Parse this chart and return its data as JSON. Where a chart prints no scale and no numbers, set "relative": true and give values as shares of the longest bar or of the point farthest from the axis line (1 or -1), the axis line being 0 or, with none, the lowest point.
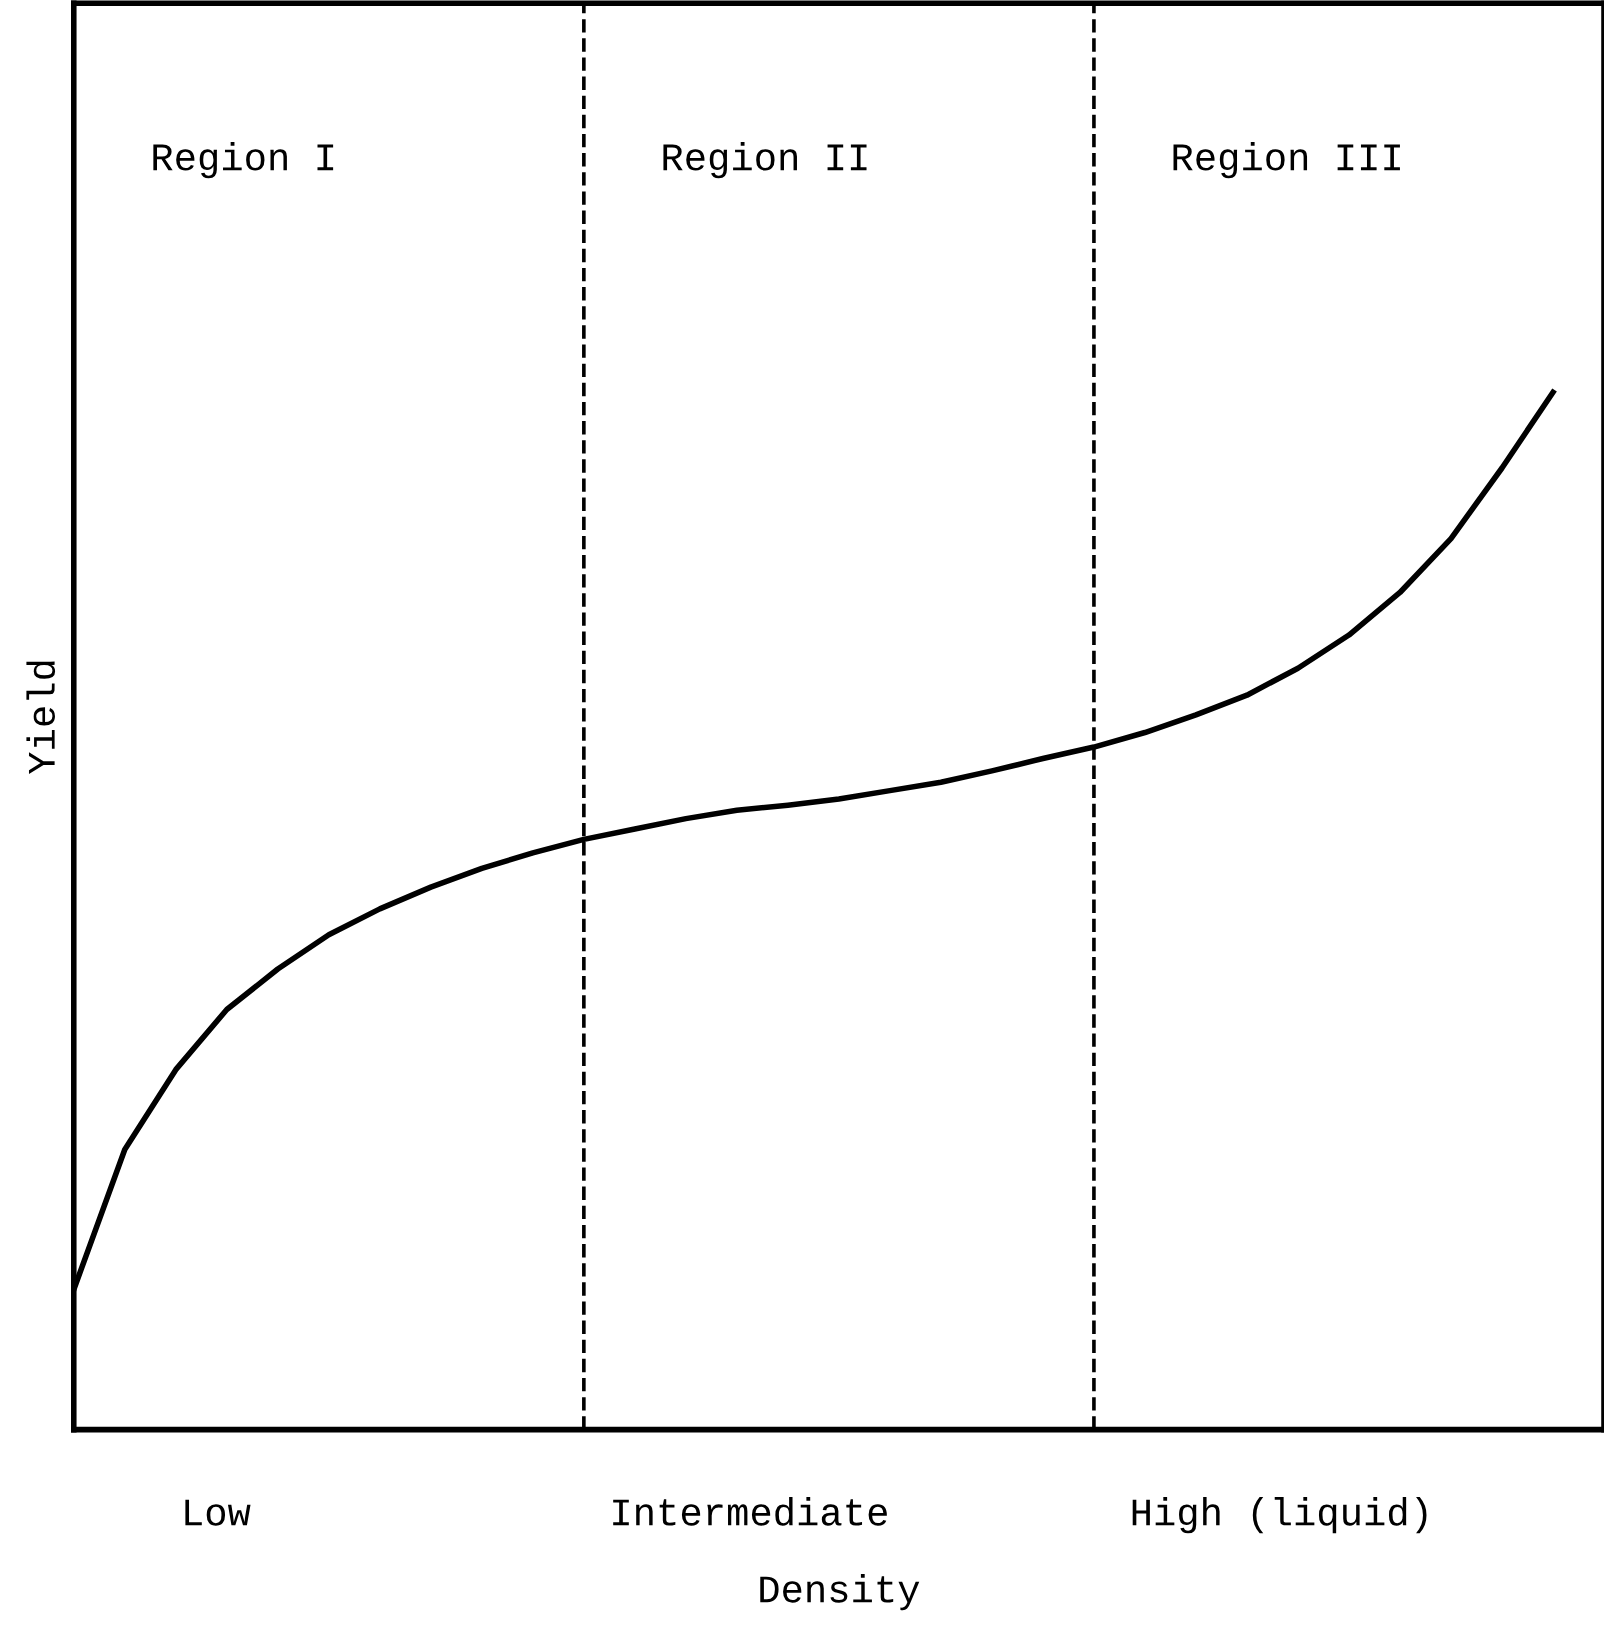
{
  "chart_data": {
    "type": "line",
    "relative": true,
    "xlabel": "Density",
    "ylabel": "Yield",
    "categories": [
      null,
      null,
      null,
      null,
      null,
      null,
      null,
      null,
      null,
      null,
      null,
      null,
      null,
      null,
      null,
      null,
      null,
      null,
      null,
      null,
      null,
      null,
      null,
      null,
      null,
      null,
      null,
      null,
      null,
      null,
      null
    ],
    "series": [
      {
        "color": "#000000",
        "values": [
          0.135,
          0.27,
          0.347,
          0.405,
          0.444,
          0.477,
          0.502,
          0.523,
          0.541,
          0.556,
          0.569,
          0.579,
          0.589,
          0.597,
          0.602,
          0.608,
          0.616,
          0.624,
          0.635,
          0.647,
          0.658,
          0.672,
          0.689,
          0.708,
          0.734,
          0.766,
          0.807,
          0.859,
          0.927,
          1,
          null
        ]
      }
    ],
    "annotations": [
      "Region I",
      "Region II",
      "Region III",
      "Low",
      "Intermediate",
      "High (liquid)"
    ],
    "marker": "none",
    "line_style": "solid"
  }
}
